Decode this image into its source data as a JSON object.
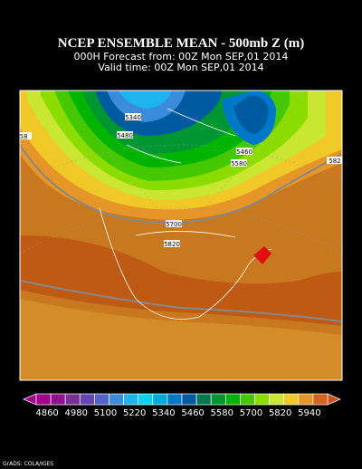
{
  "header": {
    "title": "NCEP ENSEMBLE MEAN - 500mb Z (m)",
    "forecast": "000H Forecast from: 00Z Mon SEP,01 2014",
    "valid": "Valid time: 00Z Mon SEP,01 2014"
  },
  "contour_labels": [
    "5340",
    "5480",
    "5460",
    "5580",
    "5700",
    "5820",
    "58",
    "582"
  ],
  "colorbar": {
    "colors": [
      "#a0008c",
      "#8c148c",
      "#783296",
      "#6446b4",
      "#5064c8",
      "#3c8cdc",
      "#1eb4f0",
      "#00d2f0",
      "#00aadc",
      "#0078c8",
      "#005aa0",
      "#007850",
      "#009632",
      "#00b400",
      "#46c800",
      "#8cdc00",
      "#c8e632",
      "#f0c828",
      "#e69628",
      "#d2641e"
    ],
    "left_color": "#a0008c",
    "right_color": "#c8501e",
    "labels": [
      "4860",
      "4980",
      "5100",
      "5220",
      "5340",
      "5460",
      "5580",
      "5700",
      "5820",
      "5940"
    ]
  },
  "footer": "GrADS: COLA/IGES"
}
